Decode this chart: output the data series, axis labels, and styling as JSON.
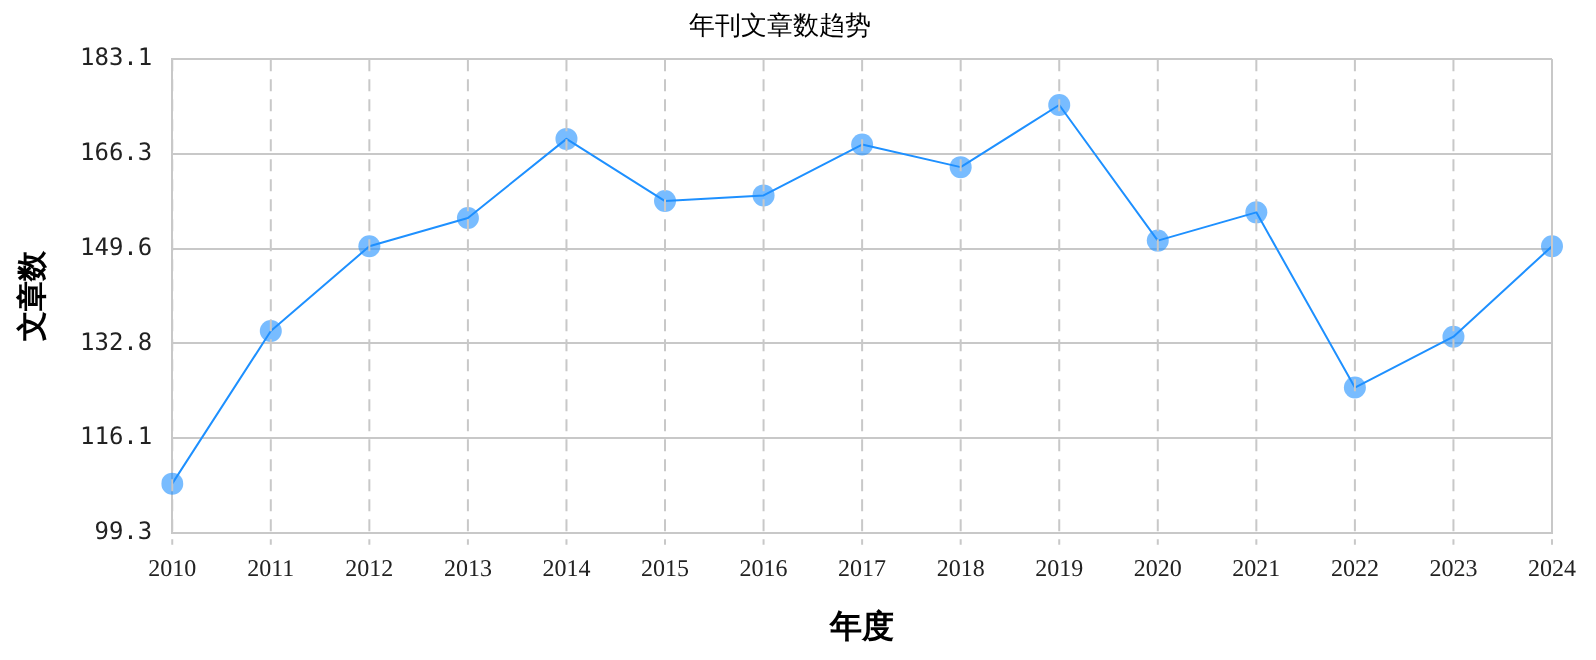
{
  "chart_data": {
    "type": "line",
    "title": "年刊文章数趋势",
    "xlabel": "年度",
    "ylabel": "文章数",
    "categories": [
      "2010",
      "2011",
      "2012",
      "2013",
      "2014",
      "2015",
      "2016",
      "2017",
      "2018",
      "2019",
      "2020",
      "2021",
      "2022",
      "2023",
      "2024"
    ],
    "series": [
      {
        "color": "#1e90ff",
        "values": [
          108,
          135,
          150,
          155,
          169,
          158,
          159,
          168,
          164,
          175,
          151,
          156,
          125,
          134,
          150
        ]
      }
    ],
    "ylim": [
      99.3,
      183.1
    ],
    "yticks": [
      99.3,
      116.1,
      132.8,
      149.6,
      166.3,
      183.1
    ],
    "grid": true,
    "legend": false,
    "marker": "circle",
    "line_style": "solid"
  }
}
